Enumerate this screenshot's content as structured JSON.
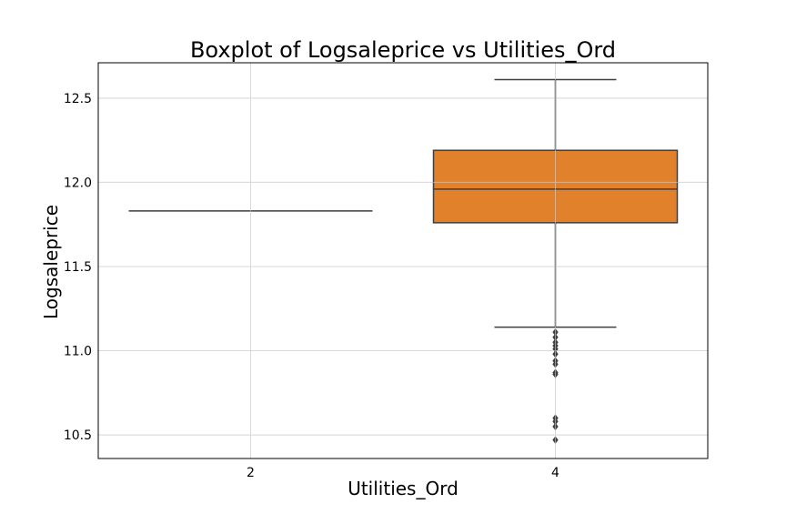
{
  "chart_data": {
    "type": "boxplot",
    "title": "Boxplot of Logsaleprice vs Utilities_Ord",
    "xlabel": "Utilities_Ord",
    "ylabel": "Logsaleprice",
    "categories": [
      "2",
      "4"
    ],
    "ylim": [
      10.36,
      12.71
    ],
    "yticks": [
      10.5,
      11.0,
      11.5,
      12.0,
      12.5
    ],
    "ytick_labels": [
      "10.5",
      "11.0",
      "11.5",
      "12.0",
      "12.5"
    ],
    "grid": true,
    "boxes": [
      {
        "category": "2",
        "min": 11.83,
        "q1": 11.83,
        "median": 11.83,
        "q3": 11.83,
        "max": 11.83,
        "color": "#ffffff",
        "outliers": []
      },
      {
        "category": "4",
        "min": 11.14,
        "q1": 11.76,
        "median": 11.96,
        "q3": 12.19,
        "max": 12.61,
        "color": "#e1812c",
        "outliers": [
          11.11,
          11.08,
          11.05,
          11.03,
          11.01,
          10.98,
          10.94,
          10.92,
          10.87,
          10.86,
          10.6,
          10.58,
          10.55,
          10.47
        ]
      }
    ]
  }
}
